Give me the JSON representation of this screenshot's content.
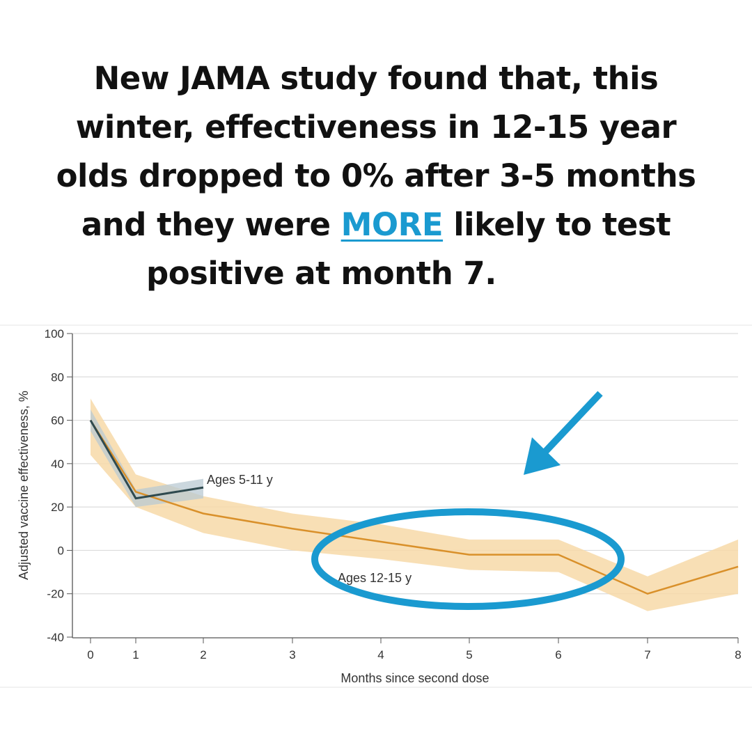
{
  "headline": {
    "line1": "New JAMA study found that, this",
    "line2": "winter, effectiveness in 12-15 year",
    "line3": "olds dropped to 0% after 3-5 months",
    "line4_pre": "and they were ",
    "line4_emph": "MORE",
    "line4_post": " likely to test",
    "line5": "positive at month 7."
  },
  "colors": {
    "accent": "#1a9ad0",
    "series_12_15": "#d9902a",
    "band_12_15": "#f7d9a8",
    "series_5_11": "#2f4a4f",
    "band_5_11": "#b9c9d3"
  },
  "chart_data": {
    "type": "line",
    "xlabel": "Months since second dose",
    "ylabel": "Adjusted vaccine effectiveness, %",
    "ylim": [
      -40,
      100
    ],
    "xlim": [
      0,
      8
    ],
    "xticks": [
      "0",
      "1",
      "2",
      "3",
      "4",
      "5",
      "6",
      "7",
      "8"
    ],
    "yticks": [
      "100",
      "80",
      "60",
      "40",
      "20",
      "0",
      "-20",
      "-40"
    ],
    "grid": true,
    "series": [
      {
        "name": "Ages 12-15 y",
        "x": [
          0,
          1,
          2,
          3,
          4,
          5,
          6,
          7,
          8
        ],
        "values": [
          60,
          27,
          17,
          10,
          4,
          -2,
          -2,
          -20,
          -7.5
        ],
        "ci_upper": [
          70,
          35,
          25,
          17,
          12,
          5,
          5,
          -12,
          5
        ],
        "ci_lower": [
          44,
          20,
          8,
          0,
          -4,
          -9,
          -10,
          -28,
          -20
        ]
      },
      {
        "name": "Ages 5-11 y",
        "x": [
          0,
          1,
          2
        ],
        "values": [
          60,
          24,
          29
        ],
        "ci_upper": [
          65,
          28,
          33
        ],
        "ci_lower": [
          55,
          20,
          24
        ]
      }
    ],
    "annotations": [
      "Ages 5-11 y",
      "Ages 12-15 y"
    ]
  }
}
